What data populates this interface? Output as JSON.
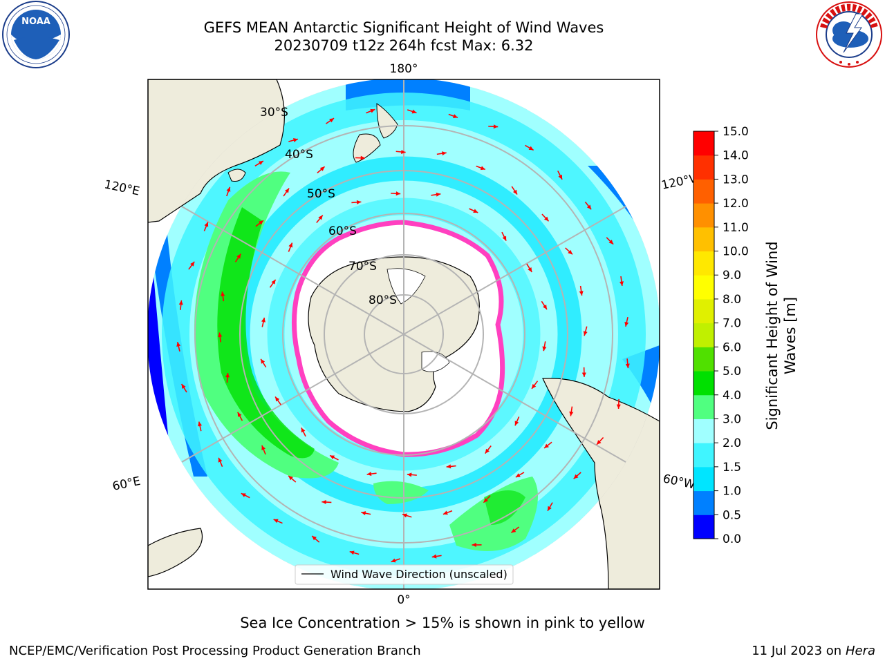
{
  "header": {
    "title_line1": "GEFS MEAN Antarctic Significant Height of Wind Waves",
    "title_line2": "20230709 t12z 264h fcst   Max: 6.32"
  },
  "logos": {
    "left": {
      "name": "noaa-logo",
      "text": "NOAA",
      "ring_text": "NATIONAL OCEANIC AND ATMOSPHERIC ADMINISTRATION · U.S. DEPARTMENT OF COMMERCE"
    },
    "right": {
      "name": "nws-logo",
      "ring_text": "NATIONAL WEATHER SERVICE"
    }
  },
  "map": {
    "projection": "south-polar-stereographic",
    "lon_labels": [
      "180°",
      "120°E",
      "120°W",
      "60°E",
      "60°W",
      "0°"
    ],
    "lat_labels": [
      "30°S",
      "40°S",
      "50°S",
      "60°S",
      "70°S",
      "80°S"
    ],
    "legend_label": "Wind Wave Direction (unscaled)",
    "colors": {
      "land": "#eeecdc",
      "sea_ice": "#ffffff",
      "ice_edge": "#ff40c0",
      "arrow": "#ff0000",
      "grid": "#b4b4b4"
    }
  },
  "colorbar": {
    "label": "Significant Height of Wind Waves [m]",
    "ticks": [
      "0.0",
      "0.5",
      "1.0",
      "1.5",
      "2.0",
      "3.0",
      "4.0",
      "5.0",
      "6.0",
      "7.0",
      "8.0",
      "9.0",
      "10.0",
      "11.0",
      "12.0",
      "13.0",
      "14.0",
      "15.0"
    ],
    "colors": [
      "#0000ff",
      "#0080ff",
      "#00e5ff",
      "#40f5ff",
      "#a0ffff",
      "#50ff80",
      "#00e000",
      "#50e000",
      "#c0f000",
      "#e0f000",
      "#ffff00",
      "#ffe800",
      "#ffc000",
      "#ff9000",
      "#ff6000",
      "#ff3000",
      "#ff0000"
    ]
  },
  "caption": "Sea Ice Concentration > 15% is shown in pink to yellow",
  "footer": {
    "left": "NCEP/EMC/Verification Post Processing Product Generation Branch",
    "right_date": "11 Jul 2023 on",
    "right_machine": "Hera"
  }
}
